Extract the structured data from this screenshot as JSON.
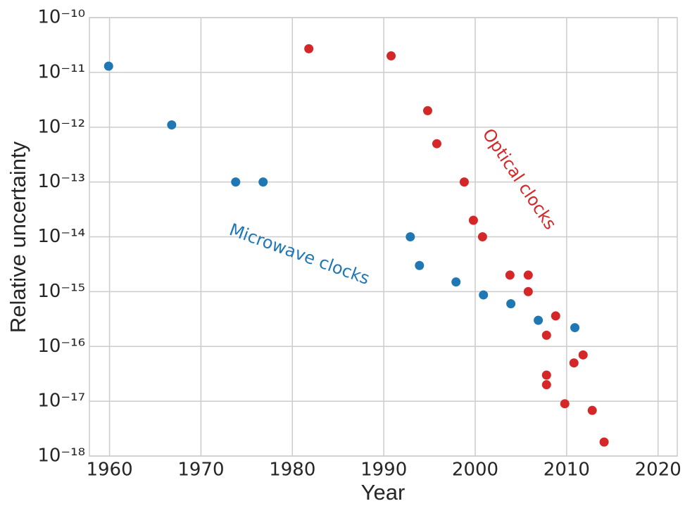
{
  "chart_data": {
    "type": "scatter",
    "xlabel": "Year",
    "ylabel": "Relative uncertainty",
    "xlim": [
      1957.8,
      2022.1
    ],
    "ylim": [
      1e-18,
      1e-10
    ],
    "log_y": true,
    "grid": true,
    "xticks": [
      1960,
      1970,
      1980,
      1990,
      2000,
      2010,
      2020
    ],
    "yticks": [
      {
        "value": 1e-18,
        "label": "10⁻¹⁸"
      },
      {
        "value": 1e-17,
        "label": "10⁻¹⁷"
      },
      {
        "value": 1e-16,
        "label": "10⁻¹⁶"
      },
      {
        "value": 1e-15,
        "label": "10⁻¹⁵"
      },
      {
        "value": 1e-14,
        "label": "10⁻¹⁴"
      },
      {
        "value": 1e-13,
        "label": "10⁻¹³"
      },
      {
        "value": 1e-12,
        "label": "10⁻¹²"
      },
      {
        "value": 1e-11,
        "label": "10⁻¹¹"
      },
      {
        "value": 1e-10,
        "label": "10⁻¹⁰"
      }
    ],
    "series": [
      {
        "name": "Microwave clocks",
        "color": "#1f77b4",
        "x": [
          1959.9,
          1966.8,
          1973.8,
          1976.8,
          1992.9,
          1993.9,
          1997.9,
          2000.9,
          2003.9,
          2006.9,
          2010.9
        ],
        "values": [
          1.3e-11,
          1.1e-12,
          1e-13,
          1e-13,
          1e-14,
          3e-15,
          1.5e-15,
          8.7e-16,
          6e-16,
          3e-16,
          2.2e-16
        ]
      },
      {
        "name": "Optical clocks",
        "color": "#d62728",
        "x": [
          1981.8,
          1990.8,
          1994.8,
          1995.8,
          1998.8,
          1999.8,
          2000.8,
          2003.8,
          2005.8,
          2005.8,
          2007.8,
          2008.8,
          2007.8,
          2007.8,
          2010.8,
          2011.8,
          2009.8,
          2012.8,
          2014.1
        ],
        "values": [
          2.7e-11,
          2e-11,
          2e-12,
          5e-13,
          1e-13,
          2e-14,
          1e-14,
          2e-15,
          2e-15,
          1e-15,
          1.6e-16,
          3.6e-16,
          3e-17,
          2e-17,
          5e-17,
          7e-17,
          9e-18,
          6.8e-18,
          1.8e-18
        ]
      }
    ]
  }
}
